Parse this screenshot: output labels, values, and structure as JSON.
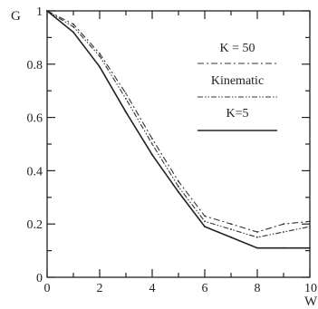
{
  "chart_data": {
    "type": "line",
    "title": "",
    "xlabel": "W",
    "ylabel": "G",
    "xlim": [
      0,
      10
    ],
    "ylim": [
      0,
      1
    ],
    "x_ticks": [
      "0",
      "2",
      "4",
      "6",
      "8",
      "10"
    ],
    "y_ticks": [
      "0",
      "0.2",
      "0.4",
      "0.6",
      "0.8",
      "1"
    ],
    "grid": false,
    "legend_placement": "top-right",
    "series": [
      {
        "name": "K = 50",
        "style": "dash-dot",
        "color": "#333333",
        "x": [
          0,
          1,
          2,
          3,
          4,
          5,
          6,
          7,
          8,
          9,
          10
        ],
        "y": [
          1.0,
          0.95,
          0.84,
          0.69,
          0.52,
          0.36,
          0.23,
          0.2,
          0.17,
          0.2,
          0.21
        ]
      },
      {
        "name": "Kinematic",
        "style": "dash-dot-dot",
        "color": "#333333",
        "x": [
          0,
          1,
          2,
          3,
          4,
          5,
          6,
          7,
          8,
          9,
          10
        ],
        "y": [
          1.0,
          0.94,
          0.83,
          0.67,
          0.5,
          0.34,
          0.21,
          0.18,
          0.15,
          0.17,
          0.19
        ]
      },
      {
        "name": "K=5",
        "style": "solid",
        "color": "#222222",
        "x": [
          0,
          1,
          2,
          3,
          4,
          5,
          6,
          7,
          8,
          9,
          10
        ],
        "y": [
          1.0,
          0.92,
          0.79,
          0.62,
          0.46,
          0.32,
          0.19,
          0.15,
          0.11,
          0.11,
          0.11
        ]
      }
    ]
  }
}
